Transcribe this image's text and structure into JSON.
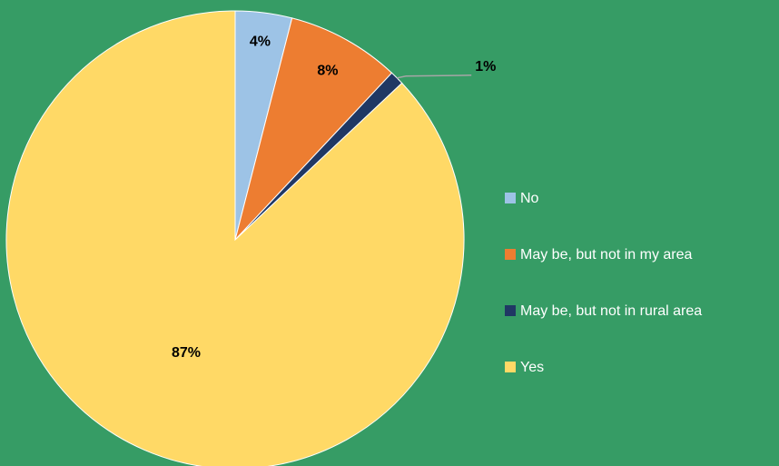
{
  "chart_data": {
    "type": "pie",
    "categories": [
      "No",
      "May be, but not in my area",
      "May be, but not in rural area",
      "Yes"
    ],
    "values": [
      4,
      8,
      1,
      87
    ],
    "value_labels": [
      "4%",
      "8%",
      "1%",
      "87%"
    ],
    "colors": [
      "#9dc3e6",
      "#ed7d31",
      "#203864",
      "#ffd966"
    ],
    "legend": "right"
  }
}
